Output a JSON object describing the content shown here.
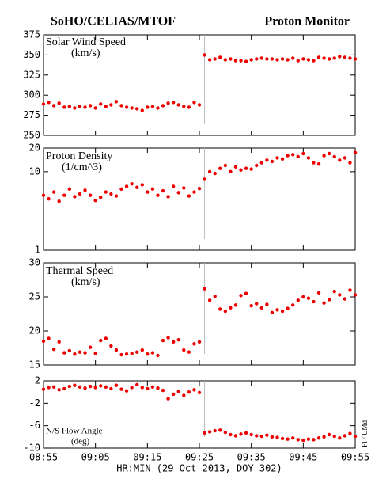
{
  "header": {
    "left": "SoHO/CELIAS/MTOF",
    "right": "Proton Monitor"
  },
  "x_label": "HR:MIN (29 Oct 2013, DOY 302)",
  "credit": "FI / UMd",
  "chart_data": [
    {
      "type": "scatter",
      "title": "Solar Wind Speed",
      "units": "(km/s)",
      "color": "#ee0000",
      "vline_x": "09:26",
      "x": [
        "08:55",
        "08:56",
        "08:57",
        "08:58",
        "08:59",
        "09:00",
        "09:01",
        "09:02",
        "09:03",
        "09:04",
        "09:05",
        "09:06",
        "09:07",
        "09:08",
        "09:09",
        "09:10",
        "09:11",
        "09:12",
        "09:13",
        "09:14",
        "09:15",
        "09:16",
        "09:17",
        "09:18",
        "09:19",
        "09:20",
        "09:21",
        "09:22",
        "09:23",
        "09:24",
        "09:25",
        "09:26",
        "09:27",
        "09:28",
        "09:29",
        "09:30",
        "09:31",
        "09:32",
        "09:33",
        "09:34",
        "09:35",
        "09:36",
        "09:37",
        "09:38",
        "09:39",
        "09:40",
        "09:41",
        "09:42",
        "09:43",
        "09:44",
        "09:45",
        "09:46",
        "09:47",
        "09:48",
        "09:49",
        "09:50",
        "09:51",
        "09:52",
        "09:53",
        "09:54",
        "09:55"
      ],
      "values": [
        289,
        291,
        287,
        290,
        285,
        286,
        284,
        286,
        285,
        287,
        284,
        289,
        286,
        288,
        292,
        287,
        285,
        284,
        283,
        281,
        285,
        286,
        284,
        287,
        290,
        291,
        288,
        286,
        285,
        291,
        288,
        350,
        344,
        345,
        347,
        344,
        345,
        343,
        343,
        342,
        344,
        345,
        346,
        345,
        345,
        344,
        345,
        344,
        346,
        343,
        345,
        344,
        343,
        347,
        346,
        345,
        346,
        348,
        347,
        346,
        345
      ],
      "xlim": [
        "08:55",
        "09:55"
      ],
      "xticks": [
        "08:55",
        "09:05",
        "09:15",
        "09:25",
        "09:35",
        "09:45",
        "09:55"
      ],
      "ylim": [
        250,
        375
      ],
      "yticks": [
        250,
        275,
        300,
        325,
        350,
        375
      ],
      "log": false
    },
    {
      "type": "scatter",
      "title": "Proton Density",
      "units": "(1/cm^3)",
      "color": "#ee0000",
      "vline_x": "09:26",
      "x": [
        "08:55",
        "08:56",
        "08:57",
        "08:58",
        "08:59",
        "09:00",
        "09:01",
        "09:02",
        "09:03",
        "09:04",
        "09:05",
        "09:06",
        "09:07",
        "09:08",
        "09:09",
        "09:10",
        "09:11",
        "09:12",
        "09:13",
        "09:14",
        "09:15",
        "09:16",
        "09:17",
        "09:18",
        "09:19",
        "09:20",
        "09:21",
        "09:22",
        "09:23",
        "09:24",
        "09:25",
        "09:26",
        "09:27",
        "09:28",
        "09:29",
        "09:30",
        "09:31",
        "09:32",
        "09:33",
        "09:34",
        "09:35",
        "09:36",
        "09:37",
        "09:38",
        "09:39",
        "09:40",
        "09:41",
        "09:42",
        "09:43",
        "09:44",
        "09:45",
        "09:46",
        "09:47",
        "09:48",
        "09:49",
        "09:50",
        "09:51",
        "09:52",
        "09:53",
        "09:54",
        "09:55"
      ],
      "values": [
        5,
        4.5,
        5.5,
        4.2,
        5,
        6,
        4.8,
        5.2,
        5.8,
        5,
        4.3,
        4.7,
        5.5,
        5.2,
        4.9,
        6,
        6.5,
        7,
        6.3,
        6.8,
        5.5,
        6,
        5,
        5.7,
        4.8,
        6.5,
        5.4,
        6.2,
        4.9,
        5.5,
        6.1,
        8,
        10,
        9.5,
        11,
        12,
        10,
        11.5,
        10.5,
        11,
        10.8,
        12,
        13,
        14,
        13.5,
        15,
        14.5,
        16,
        16.5,
        15.5,
        17,
        15,
        13,
        12.5,
        16,
        17,
        15.5,
        14,
        15,
        13,
        17.5
      ],
      "xlim": [
        "08:55",
        "09:55"
      ],
      "xticks": [
        "08:55",
        "09:05",
        "09:15",
        "09:25",
        "09:35",
        "09:45",
        "09:55"
      ],
      "ylim": [
        1,
        20
      ],
      "yticks": [
        1,
        10,
        20
      ],
      "log": true
    },
    {
      "type": "scatter",
      "title": "Thermal Speed",
      "units": "(km/s)",
      "color": "#ee0000",
      "vline_x": "09:26",
      "x": [
        "08:55",
        "08:56",
        "08:57",
        "08:58",
        "08:59",
        "09:00",
        "09:01",
        "09:02",
        "09:03",
        "09:04",
        "09:05",
        "09:06",
        "09:07",
        "09:08",
        "09:09",
        "09:10",
        "09:11",
        "09:12",
        "09:13",
        "09:14",
        "09:15",
        "09:16",
        "09:17",
        "09:18",
        "09:19",
        "09:20",
        "09:21",
        "09:22",
        "09:23",
        "09:24",
        "09:25",
        "09:26",
        "09:27",
        "09:28",
        "09:29",
        "09:30",
        "09:31",
        "09:32",
        "09:33",
        "09:34",
        "09:35",
        "09:36",
        "09:37",
        "09:38",
        "09:39",
        "09:40",
        "09:41",
        "09:42",
        "09:43",
        "09:44",
        "09:45",
        "09:46",
        "09:47",
        "09:48",
        "09:49",
        "09:50",
        "09:51",
        "09:52",
        "09:53",
        "09:54",
        "09:55"
      ],
      "values": [
        18.5,
        18.9,
        17.3,
        18.4,
        16.8,
        17.1,
        16.6,
        16.9,
        16.8,
        17.6,
        16.7,
        18.6,
        18.9,
        17.8,
        17.2,
        16.5,
        16.6,
        16.7,
        16.9,
        17.2,
        16.6,
        16.8,
        16.4,
        18.6,
        19,
        18.4,
        18.7,
        17.2,
        16.9,
        18.1,
        18.4,
        26.2,
        24.5,
        25.1,
        23.2,
        22.9,
        23.4,
        23.8,
        25.2,
        25.5,
        23.7,
        24,
        23.4,
        23.9,
        22.7,
        23.1,
        22.9,
        23.3,
        23.8,
        24.5,
        25,
        24.8,
        24.3,
        25.6,
        24.1,
        24.6,
        25.8,
        25.3,
        24.7,
        26,
        25.3
      ],
      "xlim": [
        "08:55",
        "09:55"
      ],
      "xticks": [
        "08:55",
        "09:05",
        "09:15",
        "09:25",
        "09:35",
        "09:45",
        "09:55"
      ],
      "ylim": [
        15,
        30
      ],
      "yticks": [
        15,
        20,
        25,
        30
      ],
      "log": false
    },
    {
      "type": "scatter",
      "title": "N/S Flow Angle",
      "units": "(deg)",
      "color": "#ee0000",
      "vline_x": "09:26",
      "x": [
        "08:55",
        "08:56",
        "08:57",
        "08:58",
        "08:59",
        "09:00",
        "09:01",
        "09:02",
        "09:03",
        "09:04",
        "09:05",
        "09:06",
        "09:07",
        "09:08",
        "09:09",
        "09:10",
        "09:11",
        "09:12",
        "09:13",
        "09:14",
        "09:15",
        "09:16",
        "09:17",
        "09:18",
        "09:19",
        "09:20",
        "09:21",
        "09:22",
        "09:23",
        "09:24",
        "09:25",
        "09:26",
        "09:27",
        "09:28",
        "09:29",
        "09:30",
        "09:31",
        "09:32",
        "09:33",
        "09:34",
        "09:35",
        "09:36",
        "09:37",
        "09:38",
        "09:39",
        "09:40",
        "09:41",
        "09:42",
        "09:43",
        "09:44",
        "09:45",
        "09:46",
        "09:47",
        "09:48",
        "09:49",
        "09:50",
        "09:51",
        "09:52",
        "09:53",
        "09:54",
        "09:55"
      ],
      "values": [
        0.5,
        0.8,
        0.9,
        0.4,
        0.6,
        1.0,
        1.2,
        0.9,
        0.7,
        1.0,
        0.8,
        1.1,
        0.9,
        0.6,
        1.2,
        0.5,
        0.2,
        0.8,
        1.3,
        0.8,
        0.6,
        0.9,
        0.7,
        0.3,
        -1.2,
        -0.4,
        0.1,
        -0.6,
        0.0,
        0.4,
        -0.1,
        -7.3,
        -7.1,
        -6.9,
        -6.8,
        -7.2,
        -7.6,
        -7.8,
        -7.5,
        -7.3,
        -7.6,
        -7.8,
        -7.9,
        -7.7,
        -8.0,
        -8.1,
        -8.3,
        -8.4,
        -8.2,
        -8.5,
        -8.6,
        -8.4,
        -8.5,
        -8.2,
        -8.0,
        -7.6,
        -7.9,
        -8.2,
        -7.8,
        -7.4,
        -7.9
      ],
      "xlim": [
        "08:55",
        "09:55"
      ],
      "xticks": [
        "08:55",
        "09:05",
        "09:15",
        "09:25",
        "09:35",
        "09:45",
        "09:55"
      ],
      "ylim": [
        -10,
        2
      ],
      "yticks": [
        -10,
        -6,
        -2,
        2
      ],
      "log": false
    }
  ]
}
